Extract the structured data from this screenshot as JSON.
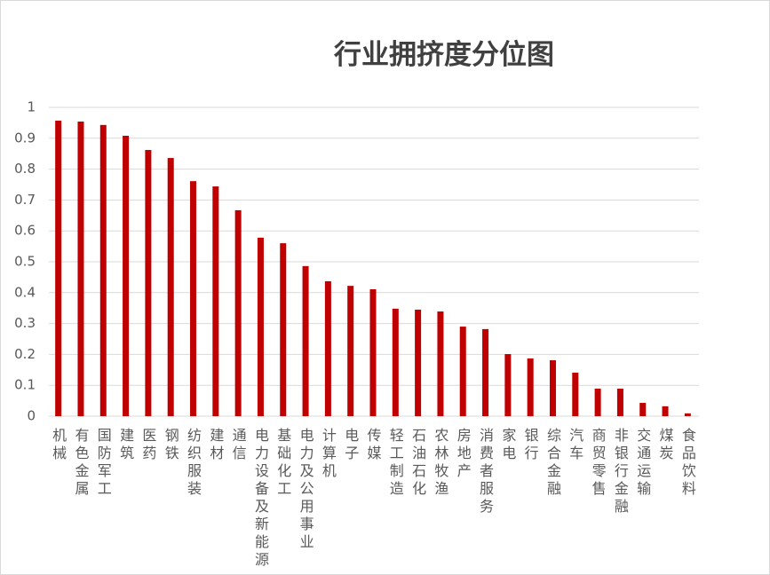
{
  "chart_data": {
    "type": "bar",
    "title": "行业拥挤度分位图",
    "categories": [
      "机械",
      "有色金属",
      "国防军工",
      "建筑",
      "医药",
      "钢铁",
      "纺织服装",
      "建材",
      "通信",
      "电力设备及新能源",
      "基础化工",
      "电力及公用事业",
      "计算机",
      "电子",
      "传媒",
      "轻工制造",
      "石油石化",
      "农林牧渔",
      "房地产",
      "消费者服务",
      "家电",
      "银行",
      "综合金融",
      "汽车",
      "商贸零售",
      "非银行金融",
      "交通运输",
      "煤炭",
      "食品饮料"
    ],
    "values": [
      0.957,
      0.954,
      0.943,
      0.908,
      0.862,
      0.836,
      0.761,
      0.744,
      0.667,
      0.578,
      0.56,
      0.486,
      0.437,
      0.422,
      0.411,
      0.348,
      0.345,
      0.339,
      0.29,
      0.282,
      0.201,
      0.187,
      0.181,
      0.141,
      0.089,
      0.089,
      0.043,
      0.032,
      0.009
    ],
    "color": "#c00000",
    "ylim": [
      0,
      1
    ],
    "yticks": [
      0,
      0.1,
      0.2,
      0.3,
      0.4,
      0.5,
      0.6,
      0.7,
      0.8,
      0.9,
      1
    ],
    "grid": true
  }
}
